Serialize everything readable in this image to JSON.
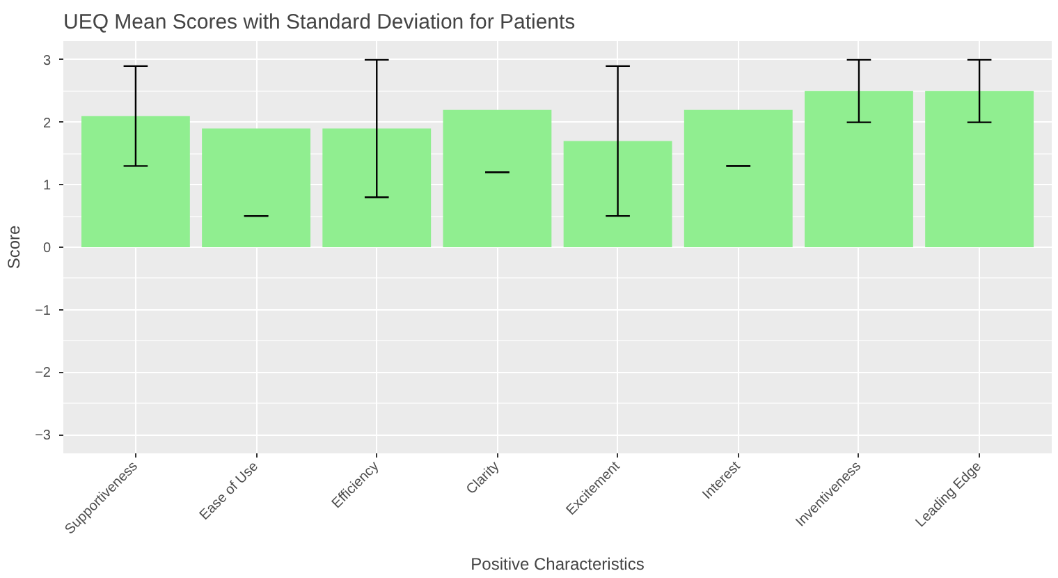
{
  "chart_data": {
    "type": "bar",
    "title": "UEQ Mean Scores with Standard Deviation for Patients",
    "xlabel": "Positive Characteristics",
    "ylabel": "Score",
    "categories": [
      "Supportiveness",
      "Ease of Use",
      "Efficiency",
      "Clarity",
      "Excitement",
      "Interest",
      "Inventiveness",
      "Leading Edge"
    ],
    "values": [
      2.1,
      1.9,
      1.9,
      2.2,
      1.7,
      2.2,
      2.5,
      2.5
    ],
    "errors": [
      [
        1.3,
        2.9
      ],
      [
        0.5,
        0.5
      ],
      [
        0.8,
        3.0
      ],
      [
        1.2,
        1.2
      ],
      [
        0.5,
        2.9
      ],
      [
        1.3,
        1.3
      ],
      [
        2.0,
        3.0
      ],
      [
        2.0,
        3.0
      ]
    ],
    "color": "#90ee90",
    "ylim": [
      -3.3,
      3.3
    ],
    "yticks": [
      -3,
      -2,
      -1,
      0,
      1,
      2,
      3
    ],
    "grid": true
  }
}
